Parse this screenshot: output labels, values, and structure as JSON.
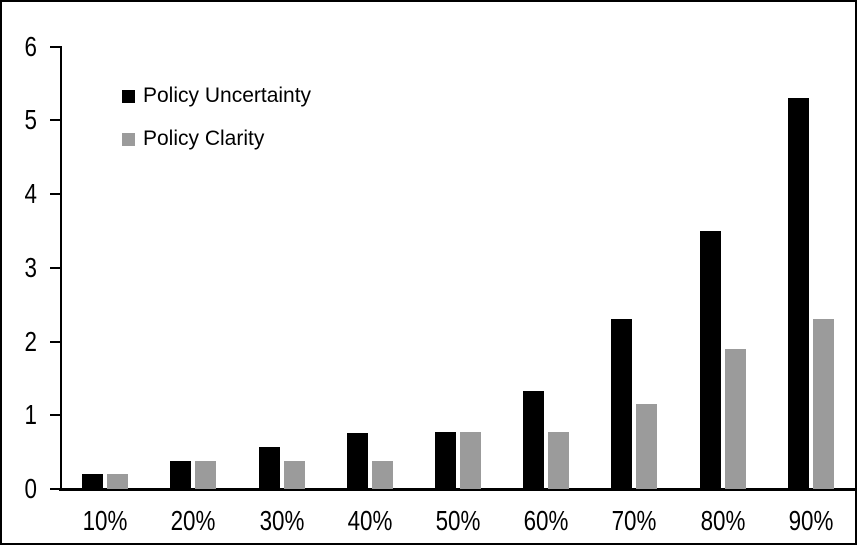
{
  "chart_data": {
    "type": "bar",
    "title": "",
    "categories": [
      "10%",
      "20%",
      "30%",
      "40%",
      "50%",
      "60%",
      "70%",
      "80%",
      "90%"
    ],
    "series": [
      {
        "name": "Policy Uncertainty",
        "color": "#000000",
        "values": [
          0.2,
          0.38,
          0.57,
          0.76,
          0.77,
          1.33,
          2.3,
          3.5,
          5.3
        ]
      },
      {
        "name": "Policy Clarity",
        "color": "#9b9b9b",
        "values": [
          0.2,
          0.38,
          0.38,
          0.38,
          0.77,
          0.77,
          1.15,
          1.9,
          2.3
        ]
      }
    ],
    "xlabel": "",
    "ylabel": "",
    "ylim": [
      0,
      6
    ],
    "y_ticks": [
      "0",
      "1",
      "2",
      "3",
      "4",
      "5",
      "6"
    ],
    "grid": false,
    "legend_position": "top-left",
    "axis_color": "#000000",
    "frame_color": "#000000",
    "background_color": "#ffffff"
  }
}
